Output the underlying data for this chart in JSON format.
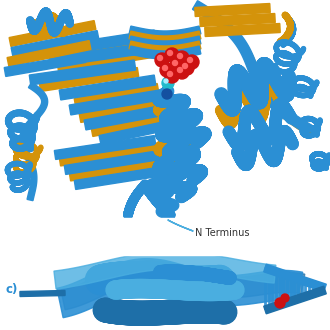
{
  "background_color": "#ffffff",
  "blue": "#2B8FD4",
  "blue2": "#1E6FA8",
  "blue3": "#4AAEE0",
  "orange": "#D4930A",
  "orange2": "#C07A00",
  "red": "#CC1111",
  "teal": "#22BBCC",
  "dark_blue": "#1450A0",
  "text_color": "#333333",
  "label_text": "N Terminus",
  "panel_c_text": "c)",
  "fig_width": 3.3,
  "fig_height": 3.3,
  "dpi": 100
}
